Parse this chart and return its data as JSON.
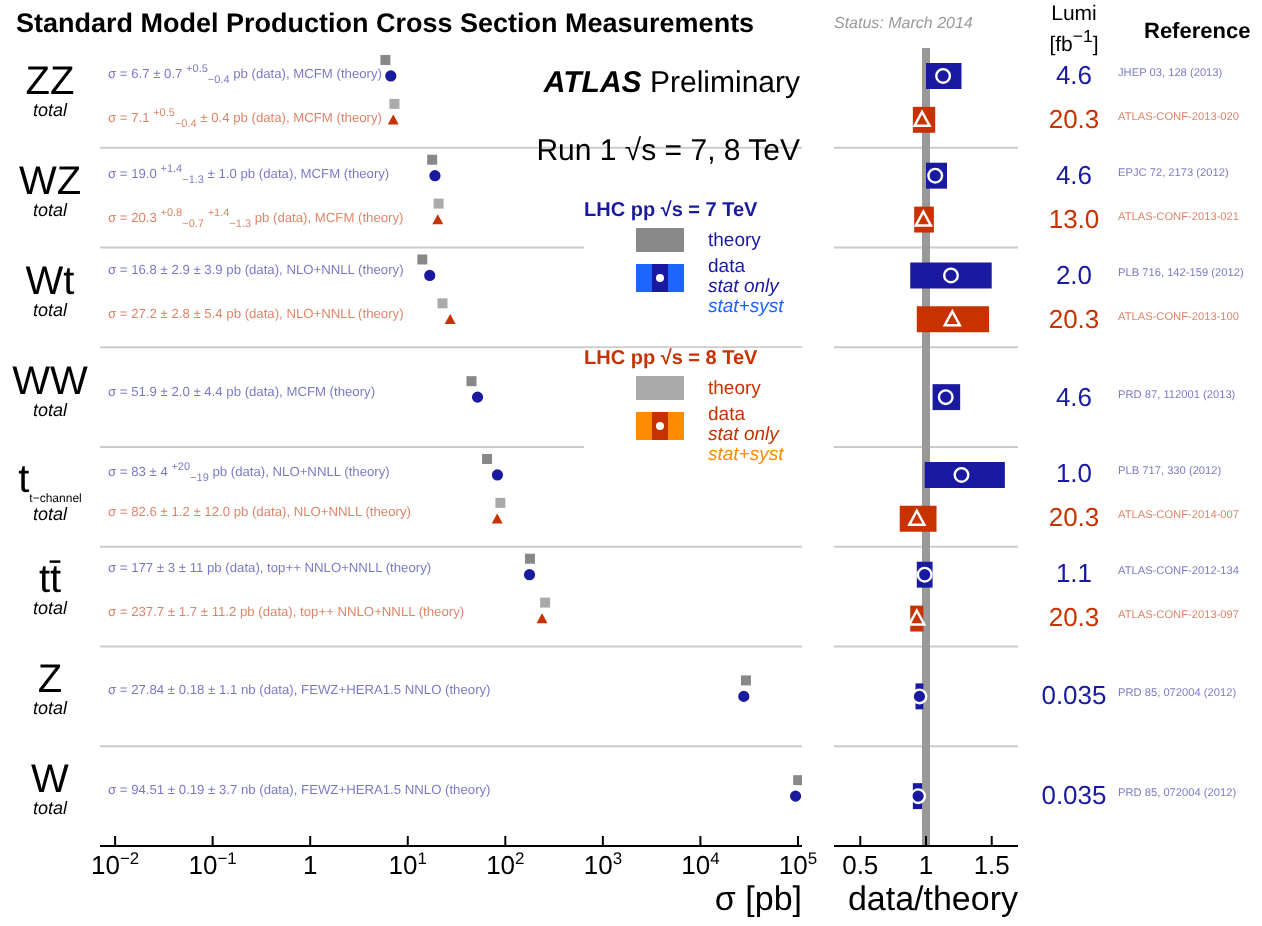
{
  "chart_data": [
    {
      "type": "scatter",
      "orientation": "horizontal",
      "title": "Standard Model Production Cross Section Measurements",
      "xlabel": "σ [pb]",
      "categories": [
        "ZZ total",
        "WZ total",
        "Wt total",
        "WW total",
        "t$_{t−channel}$ total",
        "tt̄ total",
        "Z total",
        "W total"
      ],
      "log": "x",
      "xlim": [
        0.007,
        110000
      ],
      "xticks": [
        {
          "value": 0.01,
          "label": "10$^{−2}$"
        },
        {
          "value": 0.1,
          "label": "10$^{−1}$"
        },
        1,
        {
          "value": 10,
          "label": "10$^{1}$"
        },
        {
          "value": 100,
          "label": "10$^{2}$"
        },
        {
          "value": 1000,
          "label": "10$^{3}$"
        },
        {
          "value": 10000,
          "label": "10$^{4}$"
        },
        {
          "value": 100000,
          "label": "10$^{5}$"
        }
      ],
      "grid": "y",
      "legend": "right",
      "series": [
        {
          "name": "theory",
          "color": "#888888",
          "marker": "square",
          "values": [
            5.9,
            17.8,
            14.1,
            45,
            65,
            179,
            29300,
            100500
          ]
        },
        {
          "name": "data",
          "color": "#1a1aa0",
          "marker": "circle",
          "values": [
            6.7,
            19.0,
            16.8,
            51.9,
            83,
            177,
            27840,
            94510
          ]
        },
        {
          "name": "theory",
          "color": "#aaaaaa",
          "marker": "square",
          "values": [
            7.3,
            20.7,
            22.7,
            null,
            89,
            256,
            null,
            null
          ]
        },
        {
          "name": "data",
          "color": "#c83200",
          "marker": "triangle",
          "values": [
            7.1,
            20.3,
            27.2,
            null,
            82.6,
            237.7,
            null,
            null
          ]
        }
      ],
      "annotations": [
        "ATLAS Preliminary",
        "Run 1 √s = 7, 8 TeV",
        "LHC pp √s = 7 TeV",
        "stat only",
        "stat+syst",
        "LHC pp √s = 8 TeV",
        "stat only",
        "stat+syst",
        "σ = 6.7 ± 0.7 $^{+0.5}$$_{−0.4}$ pb (data), MCFM (theory)",
        "σ = 7.1 $^{+0.5}$$_{−0.4}$ ± 0.4 pb (data), MCFM (theory)",
        "σ = 19.0 $^{+1.4}$$_{−1.3}$ ± 1.0 pb (data), MCFM (theory)",
        "σ = 20.3 $^{+0.8}$$_{−0.7}$ $^{+1.4}$$_{−1.3}$ pb (data), MCFM (theory)",
        "σ = 16.8 ± 2.9 ± 3.9 pb (data), NLO+NNLL (theory)",
        "σ = 27.2 ± 2.8 ± 5.4 pb (data), NLO+NNLL (theory)",
        "σ = 51.9 ± 2.0 ± 4.4 pb (data), MCFM (theory)",
        "σ = 83 ± 4 $^{+20}$$_{−19}$ pb (data), NLO+NNLL (theory)",
        "σ = 82.6 ± 1.2 ± 12.0 pb (data), NLO+NNLL (theory)",
        "σ = 177 ± 3 ± 11 pb (data), top++ NNLO+NNLL (theory)",
        "σ = 237.7 ± 1.7 ± 11.2 pb (data), top++ NNLO+NNLL (theory)",
        "σ = 27.84 ± 0.18 ± 1.1 nb (data), FEWZ+HERA1.5 NNLO (theory)",
        "σ = 94.51 ± 0.19 ± 3.7 nb (data), FEWZ+HERA1.5 NNLO (theory)"
      ]
    },
    {
      "type": "scatter",
      "orientation": "horizontal",
      "subtitle": "Status: March 2014",
      "xlabel": "data/theory",
      "categories": [
        null,
        null,
        null,
        null,
        null,
        null,
        null,
        null
      ],
      "tick_labels": "x",
      "xlim": [
        0.3,
        1.7
      ],
      "xticks": [
        0.5,
        1,
        1.5
      ],
      "grid": "y",
      "ref_lines": [
        {
          "axis": "x",
          "value": 1,
          "color": "#999999"
        }
      ],
      "series": [
        {
          "color": "#1a1aa0",
          "marker": "circle",
          "values": [
            1.13,
            1.07,
            1.19,
            1.15,
            1.27,
            0.99,
            0.95,
            0.94
          ],
          "errors": [
            [
              1.0,
              1.27
            ],
            [
              1.0,
              1.16
            ],
            [
              0.88,
              1.5
            ],
            [
              1.05,
              1.26
            ],
            [
              0.99,
              1.6
            ],
            [
              0.93,
              1.05
            ],
            [
              0.92,
              0.98
            ],
            [
              0.9,
              0.97
            ]
          ]
        },
        {
          "color": "#c83200",
          "marker": "triangle",
          "values": [
            0.97,
            0.98,
            1.2,
            null,
            0.93,
            0.93,
            null,
            null
          ],
          "errors": [
            [
              0.9,
              1.07
            ],
            [
              0.91,
              1.06
            ],
            [
              0.93,
              1.48
            ],
            null,
            [
              0.8,
              1.08
            ],
            [
              0.88,
              0.98
            ],
            null,
            null
          ]
        }
      ],
      "annotations": [
        "Lumi [fb$^{−1}$]",
        "Reference",
        "4.6",
        "JHEP 03, 128 (2013)",
        "20.3",
        "ATLAS-CONF-2013-020",
        "4.6",
        "EPJC 72, 2173 (2012)",
        "13.0",
        "ATLAS-CONF-2013-021",
        "2.0",
        "PLB 716, 142-159 (2012)",
        "20.3",
        "ATLAS-CONF-2013-100",
        "4.6",
        "PRD 87, 112001 (2013)",
        "1.0",
        "PLB 717, 330 (2012)",
        "20.3",
        "ATLAS-CONF-2014-007",
        "1.1",
        "ATLAS-CONF-2012-134",
        "20.3",
        "ATLAS-CONF-2013-097",
        "0.035",
        "PRD 85, 072004 (2012)",
        "0.035",
        "PRD 85, 072004 (2012)"
      ]
    }
  ]
}
